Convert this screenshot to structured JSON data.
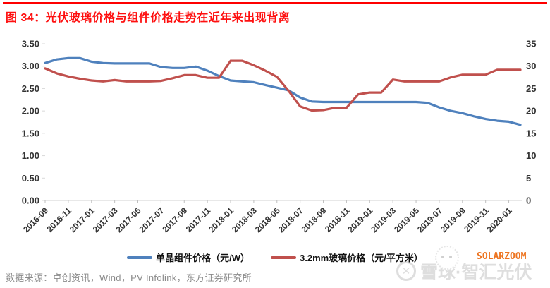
{
  "header": {
    "title": "图 34：光伏玻璃价格与组件价格走势在近年来出现背离"
  },
  "footer": {
    "source": "数据来源：卓创资讯，Wind，PV Infolink，东方证券研究所"
  },
  "watermarks": {
    "xueqiu_text": "雪球·智汇光伏",
    "logo_glyph": "✕",
    "solarzoom": "SOLARZOOM"
  },
  "colors": {
    "title_red": "#fe1010",
    "rule_red": "#fe0000",
    "module_blue": "#4F81BD",
    "glass_red": "#C0504D",
    "axis_line": "#d9d9d9",
    "tick_mark": "#bfbfbf",
    "axis_text": "#333333",
    "source_gray": "#8a8a8a",
    "solarzoom_orange": "#ed7420"
  },
  "chart_data": {
    "type": "line",
    "grid": false,
    "legend_position": "bottom",
    "x": [
      "2016-09",
      "2016-10",
      "2016-11",
      "2016-12",
      "2017-01",
      "2017-02",
      "2017-03",
      "2017-04",
      "2017-05",
      "2017-06",
      "2017-07",
      "2017-08",
      "2017-09",
      "2017-10",
      "2017-11",
      "2017-12",
      "2018-01",
      "2018-02",
      "2018-03",
      "2018-04",
      "2018-05",
      "2018-06",
      "2018-07",
      "2018-08",
      "2018-09",
      "2018-10",
      "2018-11",
      "2018-12",
      "2019-01",
      "2019-02",
      "2019-03",
      "2019-04",
      "2019-05",
      "2019-06",
      "2019-07",
      "2019-08",
      "2019-09",
      "2019-10",
      "2019-11",
      "2019-12",
      "2020-01",
      "2020-02"
    ],
    "x_tick_labels": [
      "2016-09",
      "2016-11",
      "2017-01",
      "2017-03",
      "2017-05",
      "2017-07",
      "2017-09",
      "2017-11",
      "2018-01",
      "2018-03",
      "2018-05",
      "2018-07",
      "2018-09",
      "2018-11",
      "2019-01",
      "2019-03",
      "2019-05",
      "2019-07",
      "2019-09",
      "2019-11",
      "2020-01"
    ],
    "left_axis": {
      "min": 0,
      "max": 3.5,
      "step": 0.5,
      "tick_labels": [
        "3.50",
        "3.00",
        "2.50",
        "2.00",
        "1.50",
        "1.00",
        "0.50",
        "0.00"
      ]
    },
    "right_axis": {
      "min": 0,
      "max": 35,
      "step": 5,
      "tick_labels": [
        "35",
        "30",
        "25",
        "20",
        "15",
        "10",
        "5",
        "0"
      ]
    },
    "series": [
      {
        "name": "单晶组件价格（元/W）",
        "axis": "left",
        "color": "#4F81BD",
        "values": [
          3.07,
          3.15,
          3.18,
          3.18,
          3.1,
          3.07,
          3.06,
          3.06,
          3.06,
          3.06,
          2.98,
          2.96,
          2.96,
          2.99,
          2.9,
          2.78,
          2.68,
          2.66,
          2.64,
          2.58,
          2.52,
          2.46,
          2.3,
          2.21,
          2.2,
          2.2,
          2.2,
          2.2,
          2.2,
          2.2,
          2.2,
          2.2,
          2.2,
          2.18,
          2.08,
          2.0,
          1.95,
          1.88,
          1.82,
          1.78,
          1.76,
          1.69
        ]
      },
      {
        "name": "3.2mm玻璃价格（元/平方米）",
        "axis": "right",
        "color": "#C0504D",
        "values": [
          29.5,
          28.4,
          27.7,
          27.2,
          26.8,
          26.6,
          26.9,
          26.6,
          26.6,
          26.6,
          26.7,
          27.3,
          28.0,
          28.0,
          27.4,
          27.4,
          31.2,
          31.2,
          30.2,
          29.0,
          27.6,
          24.5,
          21.0,
          20.1,
          20.2,
          20.7,
          20.7,
          23.7,
          24.1,
          24.1,
          27.0,
          26.6,
          26.6,
          26.6,
          26.6,
          27.5,
          28.1,
          28.1,
          28.1,
          29.2,
          29.2,
          29.2
        ]
      }
    ]
  }
}
